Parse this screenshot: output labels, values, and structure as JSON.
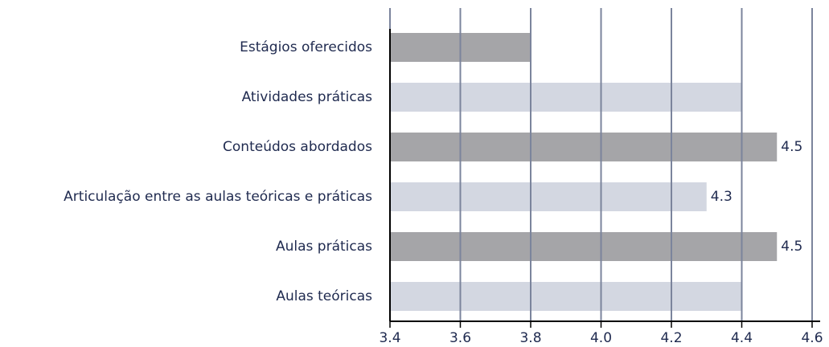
{
  "chart_data": {
    "type": "barh",
    "categories": [
      "Estágios oferecidos",
      "Atividades práticas",
      "Conteúdos abordados",
      "Articulação entre as aulas teóricas e práticas",
      "Aulas práticas",
      "Aulas teóricas"
    ],
    "values": [
      3.8,
      4.4,
      4.5,
      4.3,
      4.5,
      4.4
    ],
    "value_labels": [
      null,
      null,
      "4.5",
      "4.3",
      "4.5",
      null
    ],
    "colors": [
      "#a5a5a8",
      "#d3d7e1",
      "#a5a5a8",
      "#d3d7e1",
      "#a5a5a8",
      "#d3d7e1"
    ],
    "xlim": [
      3.4,
      4.6
    ],
    "xticks": [
      {
        "value": 3.4,
        "label": "3.4"
      },
      {
        "value": 3.6,
        "label": "3.6"
      },
      {
        "value": 3.8,
        "label": "3.8"
      },
      {
        "value": 4.0,
        "label": "4.0"
      },
      {
        "value": 4.2,
        "label": "4.2"
      },
      {
        "value": 4.4,
        "label": "4.4"
      },
      {
        "value": 4.6,
        "label": "4.6"
      }
    ],
    "grid": true
  }
}
